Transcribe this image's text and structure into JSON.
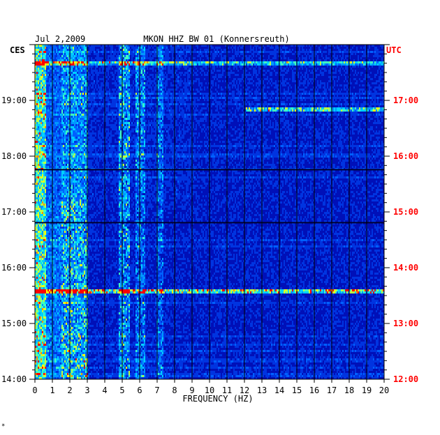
{
  "chart_data": {
    "type": "heatmap",
    "date": "Jul 2,2009",
    "title": "MKON HHZ BW 01 (Konnersreuth)",
    "left_timezone": "CES",
    "right_timezone": "UTC",
    "xlabel": "FREQUENCY (HZ)",
    "xlim": [
      0,
      20
    ],
    "x_ticks": [
      "0",
      "1",
      "2",
      "3",
      "4",
      "5",
      "6",
      "7",
      "8",
      "9",
      "10",
      "11",
      "12",
      "13",
      "14",
      "15",
      "16",
      "17",
      "18",
      "19",
      "20"
    ],
    "time_range_ces": [
      "14:00",
      "20:00"
    ],
    "left_time_labels": [
      {
        "label": "19:00",
        "hour": 19
      },
      {
        "label": "18:00",
        "hour": 18
      },
      {
        "label": "17:00",
        "hour": 17
      },
      {
        "label": "16:00",
        "hour": 16
      },
      {
        "label": "15:00",
        "hour": 15
      },
      {
        "label": "14:00",
        "hour": 14
      }
    ],
    "right_time_labels": [
      {
        "label": "17:00",
        "hour": 19
      },
      {
        "label": "16:00",
        "hour": 18
      },
      {
        "label": "15:00",
        "hour": 17
      },
      {
        "label": "14:00",
        "hour": 16
      },
      {
        "label": "13:00",
        "hour": 15
      },
      {
        "label": "12:00",
        "hour": 14
      }
    ],
    "features": {
      "low_freq_band_hz": [
        0,
        3.0
      ],
      "band_2_3_hz_intensity": 0.7,
      "line_5_hz_intensity": 0.55,
      "line_6_hz_intensity": 0.45,
      "line_7_hz_intensity": 0.4,
      "event_hour_15_6": 15.6,
      "event_hour_18_85": 18.85
    },
    "colors": {
      "background": "#0000a8",
      "low": "#0028d8",
      "mid": "#00c8ff",
      "high": "#ffff00",
      "peak": "#ff0000",
      "grid": "#000000",
      "right_label": "#ff0000",
      "left_label": "#000000"
    }
  },
  "footnote": "*"
}
